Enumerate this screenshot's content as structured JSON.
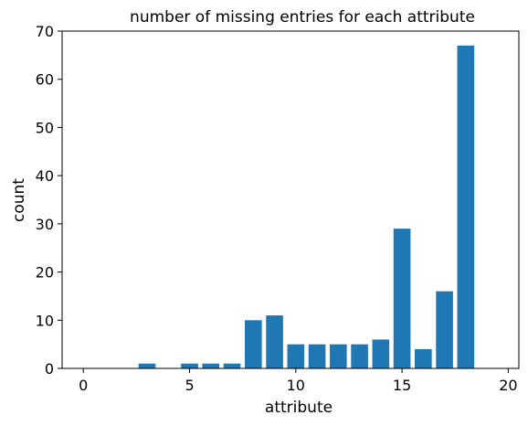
{
  "chart_data": {
    "type": "bar",
    "title": "number of missing entries for each attribute",
    "xlabel": "attribute",
    "ylabel": "count",
    "xlim": [
      -1,
      20.5
    ],
    "ylim": [
      0,
      70
    ],
    "xticks": [
      0,
      5,
      10,
      15,
      20
    ],
    "yticks": [
      0,
      10,
      20,
      30,
      40,
      50,
      60,
      70
    ],
    "grid": false,
    "bar_color": "#1f77b4",
    "x": [
      0,
      1,
      2,
      3,
      4,
      5,
      6,
      7,
      8,
      9,
      10,
      11,
      12,
      13,
      14,
      15,
      16,
      17,
      18,
      19
    ],
    "values": [
      0,
      0,
      0,
      1,
      0,
      1,
      1,
      1,
      10,
      11,
      5,
      5,
      5,
      5,
      6,
      29,
      4,
      16,
      67,
      0
    ]
  }
}
